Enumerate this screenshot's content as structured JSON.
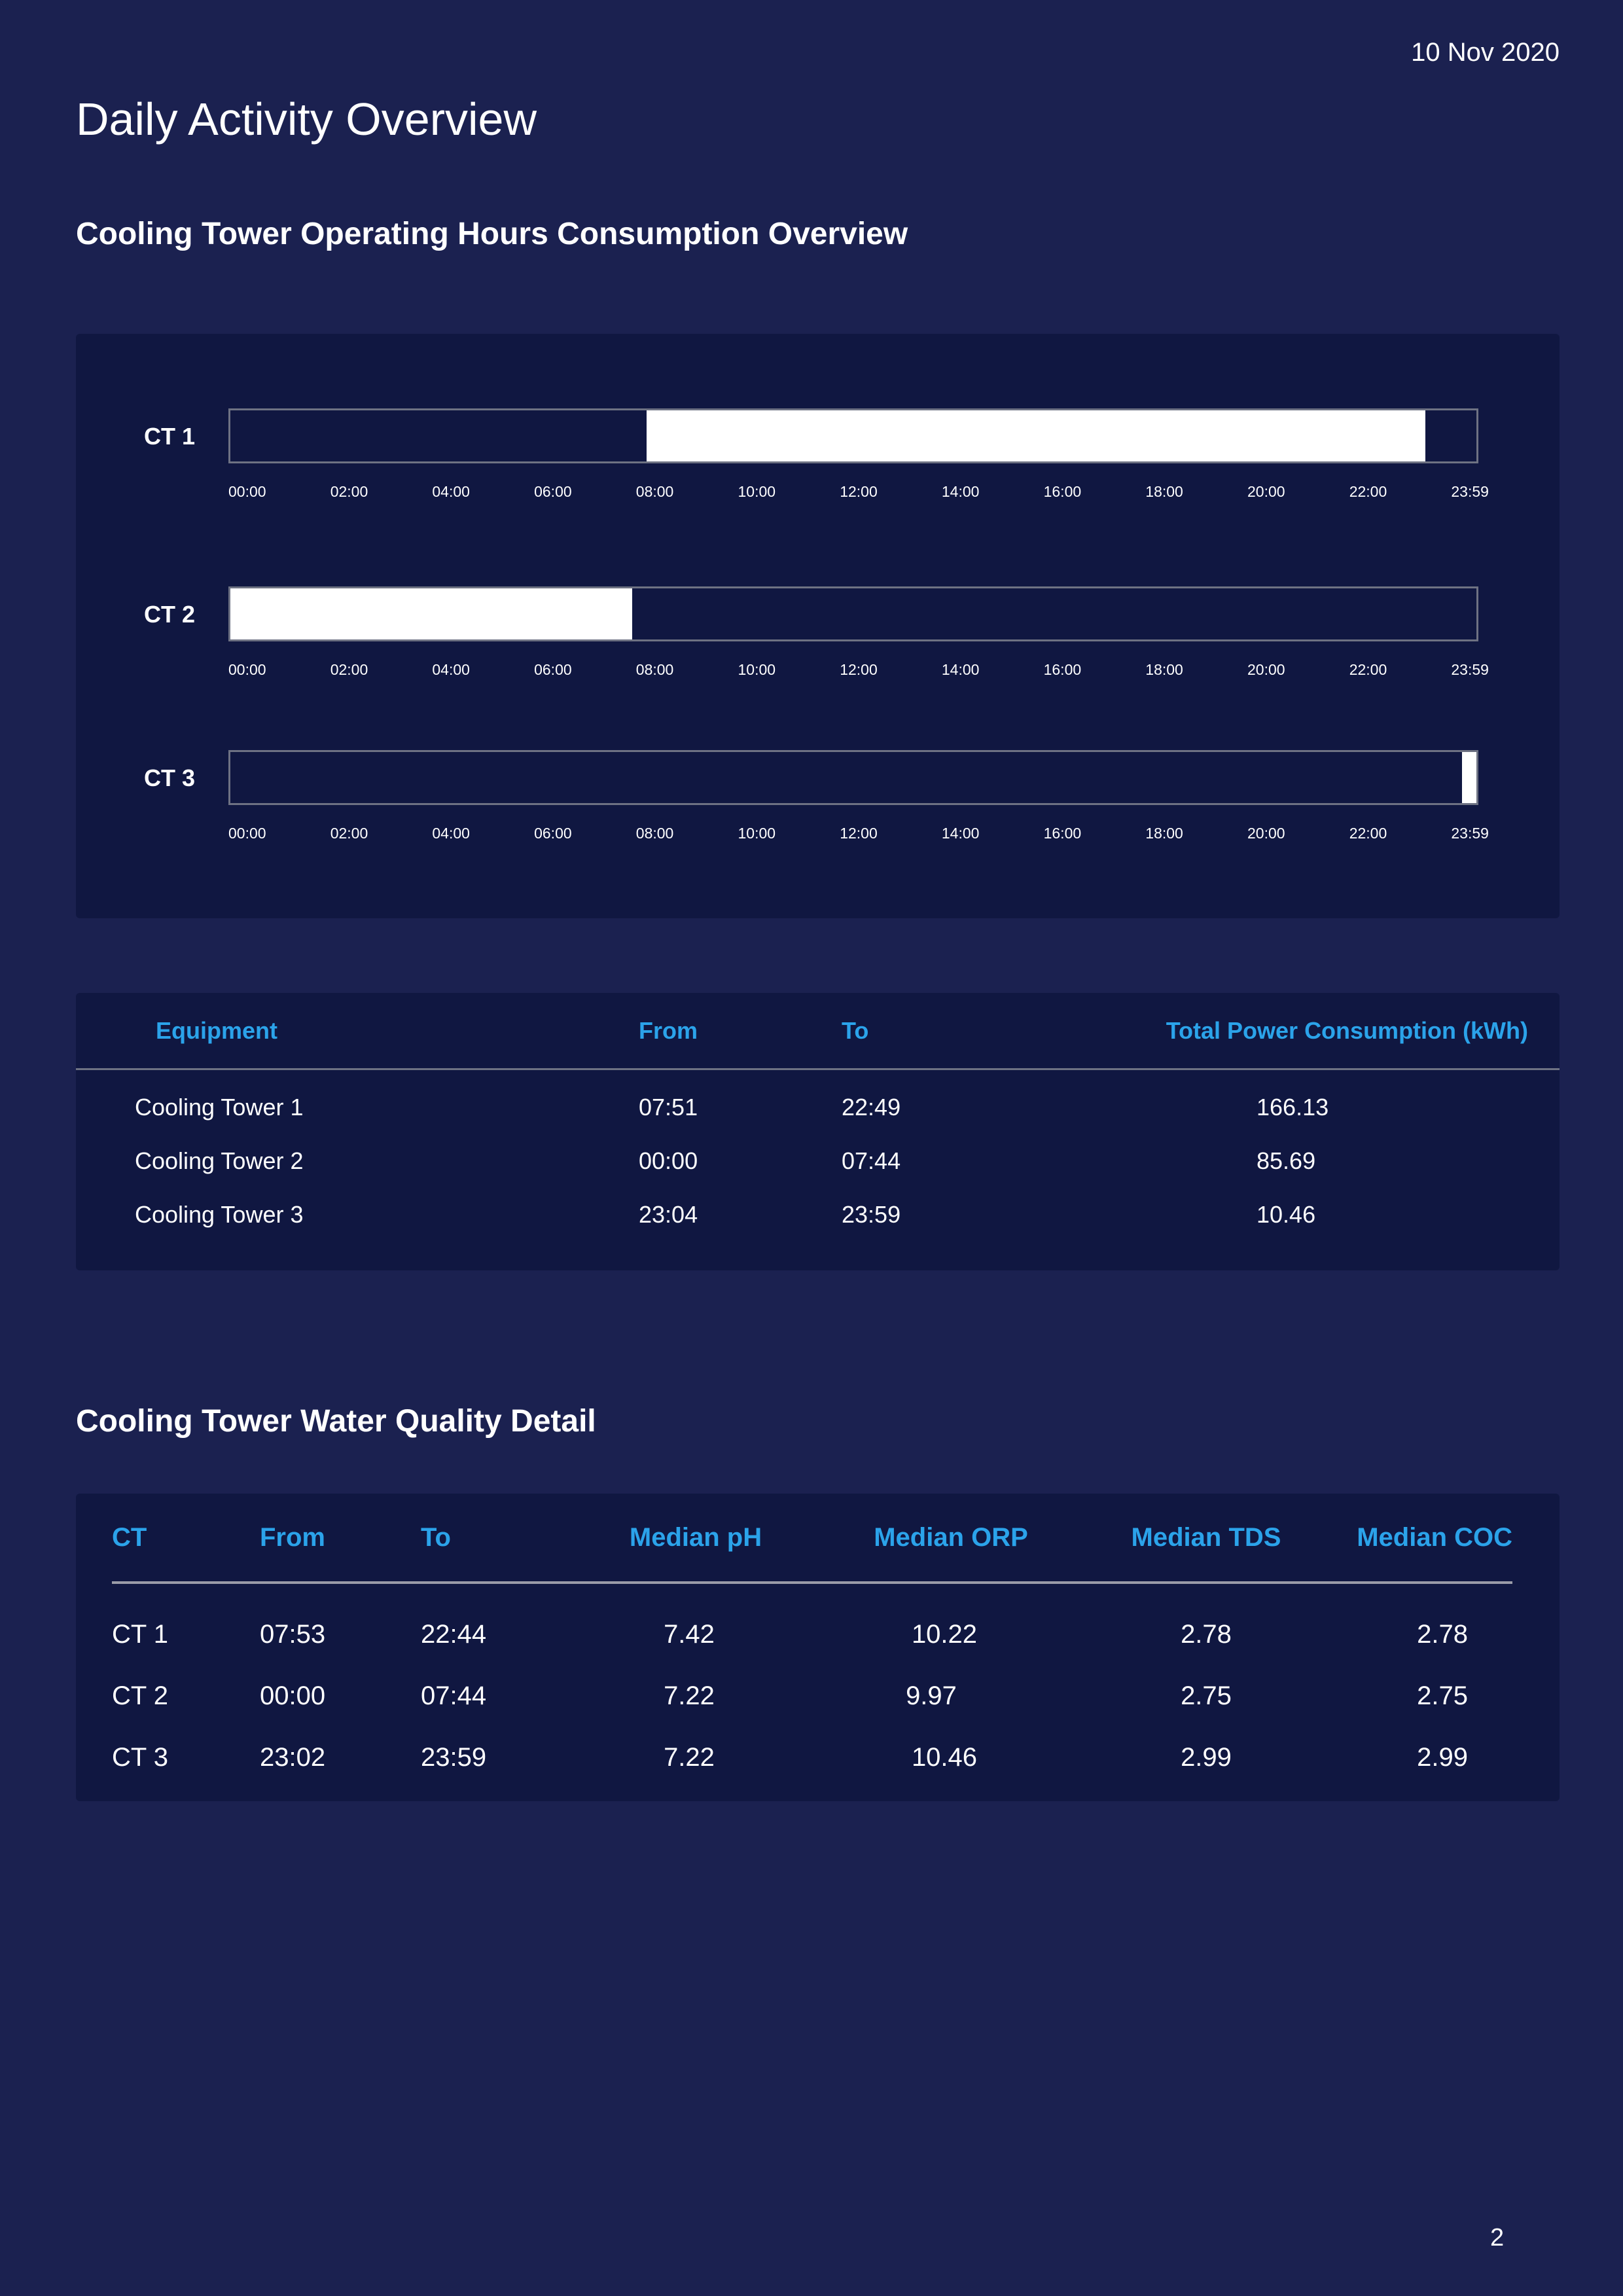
{
  "header": {
    "date": "10 Nov 2020",
    "title": "Daily Activity Overview"
  },
  "operating_hours": {
    "title": "Cooling Tower Operating Hours Consumption Overview",
    "tick_labels": [
      "00:00",
      "02:00",
      "04:00",
      "06:00",
      "08:00",
      "10:00",
      "12:00",
      "14:00",
      "16:00",
      "18:00",
      "20:00",
      "22:00",
      "23:59"
    ],
    "rows": [
      {
        "label": "CT 1",
        "from_min": 481,
        "to_min": 1380
      },
      {
        "label": "CT 2",
        "from_min": 0,
        "to_min": 464
      },
      {
        "label": "CT 3",
        "from_min": 1422,
        "to_min": 1439
      }
    ]
  },
  "chart_data": {
    "type": "bar",
    "subtype": "timeline",
    "categories": [
      "CT 1",
      "CT 2",
      "CT 3"
    ],
    "series": [
      {
        "start": [
          "08:01",
          "00:00",
          "23:42"
        ],
        "end": [
          "23:00",
          "07:44",
          "23:59"
        ]
      }
    ],
    "x_tick_labels": [
      "00:00",
      "02:00",
      "04:00",
      "06:00",
      "08:00",
      "10:00",
      "12:00",
      "14:00",
      "16:00",
      "18:00",
      "20:00",
      "22:00",
      "23:59"
    ],
    "xlim": [
      "00:00",
      "23:59"
    ]
  },
  "power_table": {
    "headers": [
      "Equipment",
      "From",
      "To",
      "Total Power Consumption (kWh)"
    ],
    "rows": [
      [
        "Cooling Tower 1",
        "07:51",
        "22:49",
        "166.13"
      ],
      [
        "Cooling Tower 2",
        "00:00",
        "07:44",
        "85.69"
      ],
      [
        "Cooling Tower 3",
        "23:04",
        "23:59",
        "10.46"
      ]
    ]
  },
  "water_quality": {
    "title": "Cooling Tower Water Quality Detail",
    "headers": [
      "CT",
      "From",
      "To",
      "Median pH",
      "Median ORP",
      "Median TDS",
      "Median COC"
    ],
    "rows": [
      [
        "CT 1",
        "07:53",
        "22:44",
        "7.42",
        "10.22",
        "2.78",
        "2.78"
      ],
      [
        "CT 2",
        "00:00",
        "07:44",
        "7.22",
        "9.97",
        "2.75",
        "2.75"
      ],
      [
        "CT 3",
        "23:02",
        "23:59",
        "7.22",
        "10.46",
        "2.99",
        "2.99"
      ]
    ]
  },
  "footer": {
    "page_number": "2"
  },
  "colors": {
    "page_bg": "#1b2150",
    "card_bg": "#101741",
    "header_accent": "#2ba3ea",
    "bar_fill": "#ffffff",
    "bar_border": "#6e7283"
  }
}
